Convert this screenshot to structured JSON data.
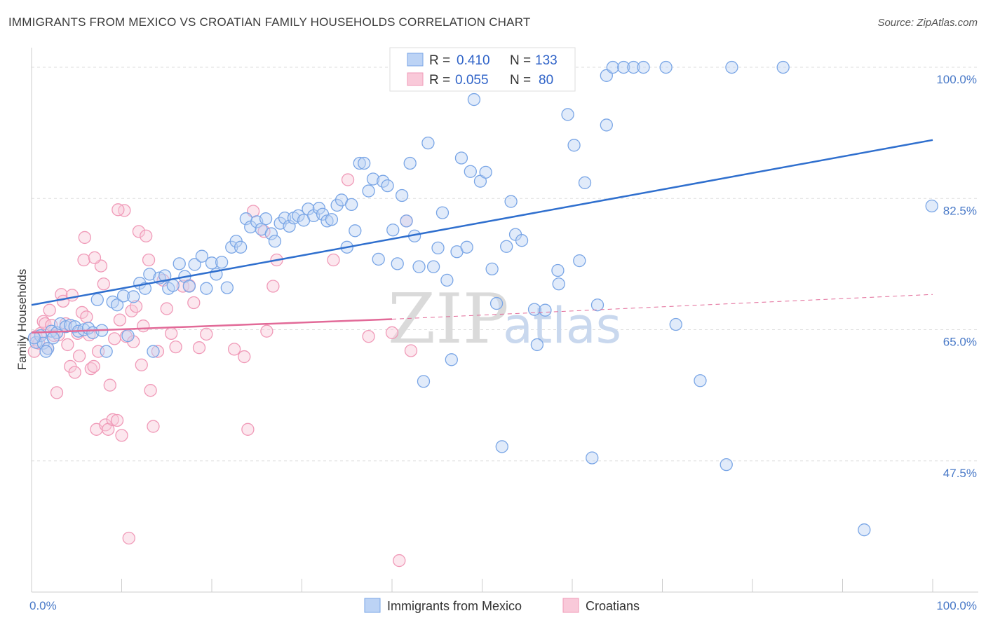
{
  "title": "IMMIGRANTS FROM MEXICO VS CROATIAN FAMILY HOUSEHOLDS CORRELATION CHART",
  "source": "Source: ZipAtlas.com",
  "watermark": {
    "part1": "ZIP",
    "part2": "atlas"
  },
  "legend_stats": [
    {
      "r_label": "R =",
      "r_value": "0.410",
      "n_label": "N =",
      "n_value": "133",
      "color": "#7aa6e6"
    },
    {
      "r_label": "R =",
      "r_value": "0.055",
      "n_label": "N =",
      "n_value": "80",
      "color": "#f09ab8"
    }
  ],
  "colors": {
    "blue": "#7aa6e6",
    "blue_line": "#2f6fce",
    "pink": "#f09ab8",
    "pink_line": "#e26a98",
    "tick_text": "#4a7ac8"
  },
  "chart_data": {
    "type": "scatter",
    "title": "IMMIGRANTS FROM MEXICO VS CROATIAN FAMILY HOUSEHOLDS CORRELATION CHART",
    "xlabel": "",
    "ylabel": "Family Households",
    "xlim": [
      0,
      100
    ],
    "ylim": [
      30,
      101.5
    ],
    "x_tick_labels": [
      "0.0%",
      "100.0%"
    ],
    "y_ticks": [
      {
        "value": 100,
        "label": "100.0%"
      },
      {
        "value": 82.5,
        "label": "82.5%"
      },
      {
        "value": 65,
        "label": "65.0%"
      },
      {
        "value": 47.5,
        "label": "47.5%"
      }
    ],
    "grid": true,
    "series": [
      {
        "name": "Immigrants from Mexico",
        "color": "#7aa6e6",
        "trend": {
          "x": [
            0,
            100
          ],
          "y": [
            68.3,
            90.3
          ],
          "style": "solid"
        },
        "points": [
          [
            0.5,
            63.3
          ],
          [
            1.0,
            64.2
          ],
          [
            1.3,
            63.2
          ],
          [
            1.8,
            62.5
          ],
          [
            2.2,
            64.8
          ],
          [
            2.8,
            64.6
          ],
          [
            3.2,
            65.8
          ],
          [
            3.8,
            65.4
          ],
          [
            4.3,
            65.6
          ],
          [
            4.8,
            65.4
          ],
          [
            5.2,
            64.8
          ],
          [
            5.8,
            65.0
          ],
          [
            6.3,
            65.2
          ],
          [
            6.8,
            64.6
          ],
          [
            7.3,
            69.0
          ],
          [
            7.8,
            64.9
          ],
          [
            8.3,
            62.1
          ],
          [
            9.0,
            68.7
          ],
          [
            9.5,
            68.3
          ],
          [
            10.2,
            69.5
          ],
          [
            10.7,
            64.2
          ],
          [
            11.3,
            69.4
          ],
          [
            12.0,
            71.2
          ],
          [
            12.6,
            70.5
          ],
          [
            13.1,
            72.4
          ],
          [
            13.5,
            62.1
          ],
          [
            14.2,
            71.9
          ],
          [
            14.8,
            72.2
          ],
          [
            15.2,
            70.5
          ],
          [
            15.7,
            70.9
          ],
          [
            16.4,
            73.8
          ],
          [
            17.0,
            72.1
          ],
          [
            17.5,
            70.8
          ],
          [
            18.1,
            73.7
          ],
          [
            18.9,
            74.8
          ],
          [
            19.4,
            70.5
          ],
          [
            20.0,
            73.9
          ],
          [
            20.5,
            72.4
          ],
          [
            21.1,
            74.0
          ],
          [
            21.7,
            70.6
          ],
          [
            22.2,
            76.0
          ],
          [
            22.7,
            76.8
          ],
          [
            23.2,
            76.0
          ],
          [
            23.8,
            79.8
          ],
          [
            24.3,
            78.7
          ],
          [
            25.0,
            79.4
          ],
          [
            25.5,
            78.4
          ],
          [
            26.0,
            79.8
          ],
          [
            26.6,
            77.8
          ],
          [
            27.0,
            76.8
          ],
          [
            27.6,
            79.2
          ],
          [
            28.1,
            79.9
          ],
          [
            28.6,
            78.8
          ],
          [
            29.1,
            79.9
          ],
          [
            29.6,
            80.2
          ],
          [
            30.2,
            79.6
          ],
          [
            30.7,
            81.1
          ],
          [
            31.3,
            80.2
          ],
          [
            31.9,
            81.2
          ],
          [
            32.3,
            80.4
          ],
          [
            32.8,
            79.5
          ],
          [
            33.3,
            79.7
          ],
          [
            33.9,
            81.6
          ],
          [
            34.4,
            82.3
          ],
          [
            35.0,
            76.0
          ],
          [
            35.5,
            81.7
          ],
          [
            35.9,
            78.2
          ],
          [
            36.4,
            87.2
          ],
          [
            36.9,
            87.2
          ],
          [
            37.4,
            83.5
          ],
          [
            37.9,
            85.1
          ],
          [
            38.5,
            74.4
          ],
          [
            39.0,
            84.8
          ],
          [
            39.5,
            84.2
          ],
          [
            40.1,
            78.3
          ],
          [
            40.6,
            73.8
          ],
          [
            41.1,
            82.9
          ],
          [
            41.6,
            79.5
          ],
          [
            42.0,
            87.2
          ],
          [
            42.5,
            77.5
          ],
          [
            43.0,
            73.4
          ],
          [
            43.5,
            58.1
          ],
          [
            44.0,
            89.9
          ],
          [
            44.6,
            73.4
          ],
          [
            45.1,
            75.9
          ],
          [
            45.6,
            80.6
          ],
          [
            46.1,
            71.6
          ],
          [
            46.6,
            61.0
          ],
          [
            47.2,
            75.4
          ],
          [
            47.7,
            87.9
          ],
          [
            48.3,
            76.0
          ],
          [
            48.7,
            86.1
          ],
          [
            49.1,
            95.7
          ],
          [
            49.8,
            84.8
          ],
          [
            50.4,
            86.0
          ],
          [
            51.1,
            73.1
          ],
          [
            51.6,
            68.5
          ],
          [
            52.2,
            49.4
          ],
          [
            52.7,
            76.1
          ],
          [
            53.2,
            82.1
          ],
          [
            53.7,
            77.7
          ],
          [
            54.4,
            76.9
          ],
          [
            55.3,
            100.0
          ],
          [
            55.8,
            67.7
          ],
          [
            56.1,
            63.0
          ],
          [
            56.6,
            100.0
          ],
          [
            57.0,
            67.6
          ],
          [
            57.4,
            100.0
          ],
          [
            58.4,
            72.9
          ],
          [
            58.5,
            71.1
          ],
          [
            59.5,
            93.7
          ],
          [
            60.2,
            89.6
          ],
          [
            60.8,
            74.2
          ],
          [
            61.4,
            84.6
          ],
          [
            62.2,
            47.9
          ],
          [
            62.8,
            68.3
          ],
          [
            63.8,
            92.3
          ],
          [
            63.8,
            98.9
          ],
          [
            64.5,
            100.0
          ],
          [
            65.7,
            100.0
          ],
          [
            66.8,
            100.0
          ],
          [
            67.9,
            100.0
          ],
          [
            70.4,
            100.0
          ],
          [
            71.5,
            65.7
          ],
          [
            74.2,
            58.2
          ],
          [
            77.1,
            47.0
          ],
          [
            77.7,
            100.0
          ],
          [
            83.4,
            100.0
          ],
          [
            92.4,
            38.3
          ],
          [
            99.9,
            81.5
          ],
          [
            0.3,
            63.9
          ],
          [
            1.6,
            62.1
          ],
          [
            2.4,
            63.9
          ]
        ]
      },
      {
        "name": "Croatians",
        "color": "#f09ab8",
        "trend": {
          "x": [
            0,
            40
          ],
          "y": [
            64.6,
            66.4
          ],
          "x_dashed": [
            40,
            100
          ],
          "y_dashed": [
            66.4,
            69.7
          ],
          "style": "solid-then-dashed"
        },
        "points": [
          [
            0.3,
            62.1
          ],
          [
            0.5,
            64.1
          ],
          [
            0.8,
            63.2
          ],
          [
            1.0,
            64.5
          ],
          [
            1.3,
            66.1
          ],
          [
            1.5,
            65.8
          ],
          [
            1.8,
            62.5
          ],
          [
            2.0,
            67.6
          ],
          [
            2.2,
            65.6
          ],
          [
            2.5,
            64.2
          ],
          [
            2.8,
            56.6
          ],
          [
            3.0,
            64.3
          ],
          [
            3.3,
            69.7
          ],
          [
            3.5,
            68.8
          ],
          [
            3.8,
            65.8
          ],
          [
            4.0,
            63.0
          ],
          [
            4.3,
            60.1
          ],
          [
            4.5,
            69.6
          ],
          [
            4.8,
            59.3
          ],
          [
            5.1,
            64.5
          ],
          [
            5.3,
            61.5
          ],
          [
            5.6,
            67.3
          ],
          [
            5.9,
            77.3
          ],
          [
            6.1,
            66.7
          ],
          [
            6.4,
            64.3
          ],
          [
            6.6,
            59.8
          ],
          [
            6.9,
            60.1
          ],
          [
            7.2,
            51.7
          ],
          [
            7.4,
            62.1
          ],
          [
            7.7,
            73.5
          ],
          [
            8.0,
            71.1
          ],
          [
            8.2,
            52.3
          ],
          [
            8.5,
            51.7
          ],
          [
            8.7,
            57.6
          ],
          [
            9.0,
            53.0
          ],
          [
            9.2,
            63.8
          ],
          [
            9.5,
            52.9
          ],
          [
            9.8,
            66.3
          ],
          [
            10.0,
            50.9
          ],
          [
            10.3,
            80.9
          ],
          [
            10.5,
            64.1
          ],
          [
            10.8,
            37.2
          ],
          [
            11.1,
            67.5
          ],
          [
            11.3,
            63.4
          ],
          [
            11.6,
            68.1
          ],
          [
            11.9,
            78.1
          ],
          [
            12.2,
            60.3
          ],
          [
            12.4,
            65.5
          ],
          [
            12.7,
            77.5
          ],
          [
            13.0,
            74.3
          ],
          [
            13.2,
            56.9
          ],
          [
            13.5,
            52.1
          ],
          [
            14.0,
            62.1
          ],
          [
            14.6,
            71.6
          ],
          [
            15.0,
            67.8
          ],
          [
            15.5,
            64.5
          ],
          [
            16.0,
            62.7
          ],
          [
            16.8,
            70.8
          ],
          [
            17.5,
            70.9
          ],
          [
            18.0,
            68.6
          ],
          [
            18.6,
            62.6
          ],
          [
            19.4,
            64.4
          ],
          [
            22.5,
            62.4
          ],
          [
            23.6,
            61.4
          ],
          [
            24.0,
            51.7
          ],
          [
            24.6,
            80.8
          ],
          [
            25.8,
            78.1
          ],
          [
            26.1,
            64.8
          ],
          [
            26.8,
            70.8
          ],
          [
            27.2,
            74.3
          ],
          [
            33.5,
            74.3
          ],
          [
            35.1,
            85.0
          ],
          [
            37.4,
            64.1
          ],
          [
            40.0,
            64.6
          ],
          [
            40.8,
            34.2
          ],
          [
            41.6,
            79.5
          ],
          [
            42.1,
            62.2
          ],
          [
            5.8,
            74.3
          ],
          [
            7.0,
            74.6
          ],
          [
            9.6,
            81.0
          ]
        ]
      }
    ]
  },
  "bottom_legend": [
    {
      "label": "Immigrants from Mexico",
      "color": "#7aa6e6"
    },
    {
      "label": "Croatians",
      "color": "#f09ab8"
    }
  ]
}
